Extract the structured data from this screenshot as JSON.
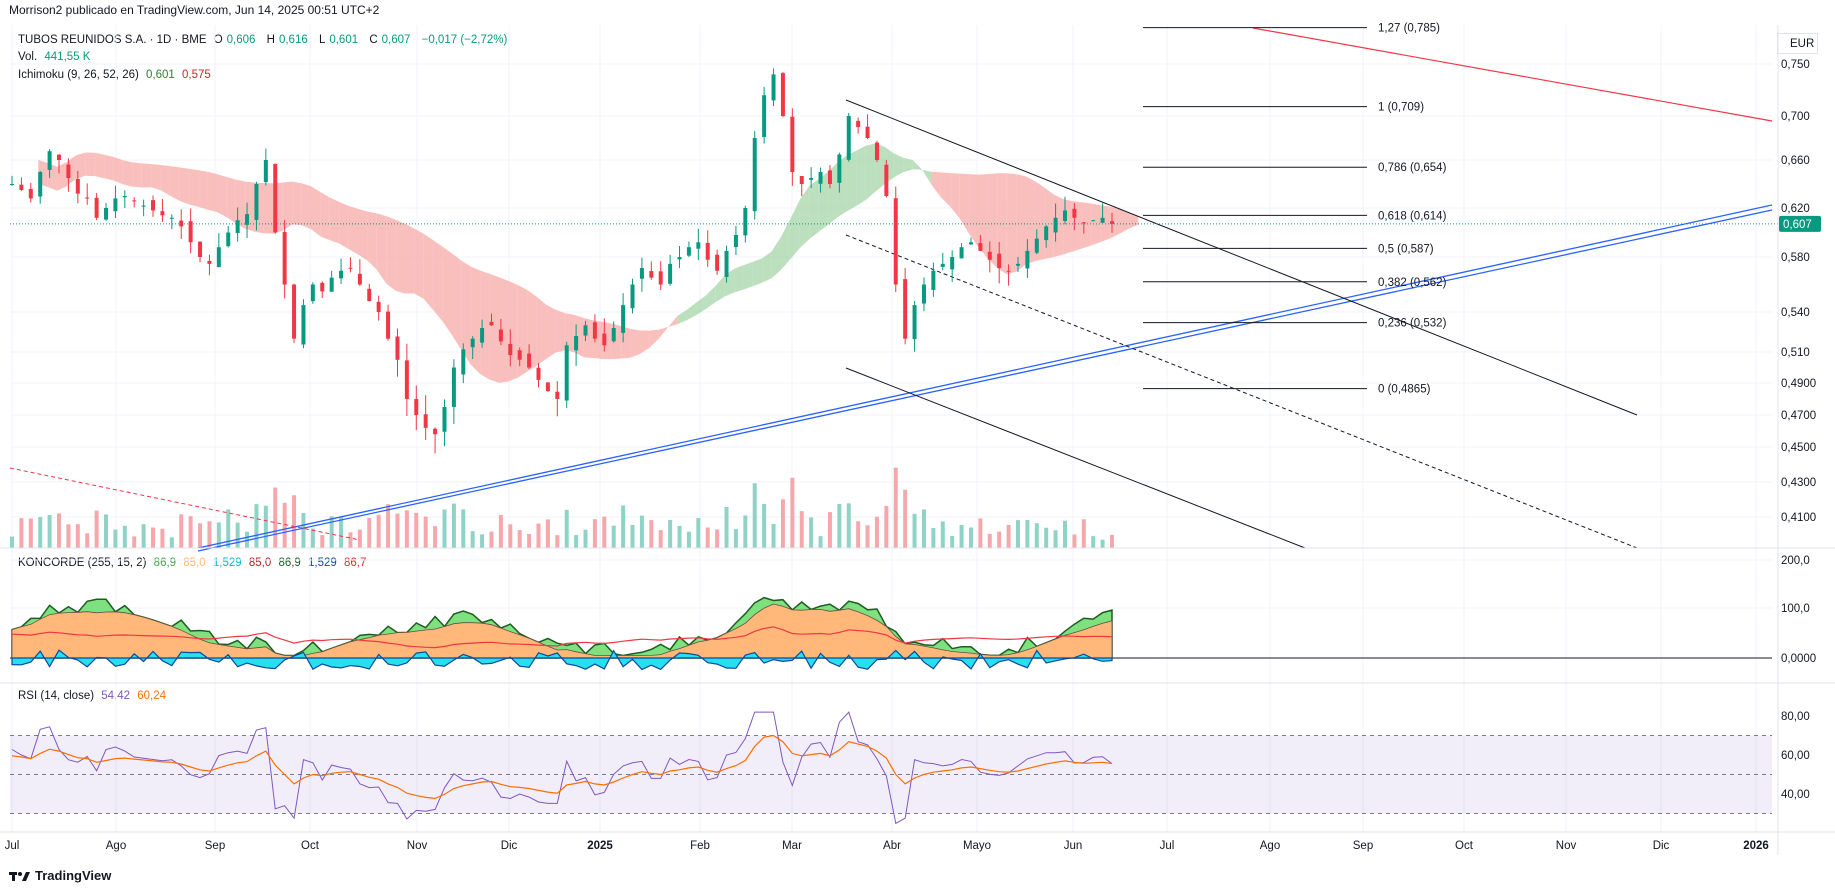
{
  "header": {
    "publisher": "Morrison2 publicado en TradingView.com, Jun 14, 2025 00:51 UTC+2"
  },
  "legend": {
    "symbol": "TUBOS REUNIDOS S.A. · 1D · BME",
    "o_label": "O",
    "o": "0,606",
    "h_label": "H",
    "h": "0,616",
    "l_label": "L",
    "l": "0,601",
    "c_label": "C",
    "c": "0,607",
    "change": "−0,017 (−2,72%)",
    "vol_label": "Vol.",
    "vol": "441,55 K",
    "ichimoku_label": "Ichimoku (9, 26, 52, 26)",
    "ichimoku_v1": "0,601",
    "ichimoku_v2": "0,575",
    "koncorde_label": "KONCORDE (255, 15, 2)",
    "koncorde_values": [
      "86,9",
      "85,0",
      "1,529",
      "85,0",
      "86,9",
      "1,529",
      "86,7"
    ],
    "rsi_label": "RSI (14, close)",
    "rsi_v1": "54,42",
    "rsi_v2": "60,24"
  },
  "colors": {
    "up": "#089981",
    "down": "#f23645",
    "cloud_bull": "#a5d6a7",
    "cloud_bear": "#f7a9a7",
    "koncorde_green": "#7fe07f",
    "koncorde_orange": "#ffb77a",
    "koncorde_cyan": "#26e0f0",
    "koncorde_ma": "#f23645",
    "rsi_line": "#7e57c2",
    "rsi_ma": "#ff6d00",
    "trend_blue": "#2962ff"
  },
  "chart_data": [
    {
      "type": "candlestick",
      "currency": "EUR",
      "x_ticks": [
        "Jul",
        "Ago",
        "Sep",
        "Oct",
        "Nov",
        "Dic",
        "2025",
        "Feb",
        "Mar",
        "Abr",
        "Mayo",
        "Jun",
        "Jul",
        "Ago",
        "Sep",
        "Oct",
        "Nov",
        "Dic",
        "2026"
      ],
      "y_ticks": [
        "0,750",
        "0,700",
        "0,660",
        "0,620",
        "0,580",
        "0,540",
        "0,510",
        "0,4900",
        "0,4700",
        "0,4500",
        "0,4300",
        "0,4100"
      ],
      "last_price": "0,607",
      "fibonacci": [
        {
          "level": "1,27",
          "price": "0,785"
        },
        {
          "level": "1",
          "price": "0,709"
        },
        {
          "level": "0,786",
          "price": "0,654"
        },
        {
          "level": "0,618",
          "price": "0,614"
        },
        {
          "level": "0,5",
          "price": "0,587"
        },
        {
          "level": "0,382",
          "price": "0,562"
        },
        {
          "level": "0,236",
          "price": "0,532"
        },
        {
          "level": "0",
          "price": "0,4865"
        }
      ],
      "close_series_approx": [
        0.64,
        0.635,
        0.628,
        0.65,
        0.668,
        0.66,
        0.645,
        0.632,
        0.628,
        0.612,
        0.62,
        0.628,
        0.63,
        0.626,
        0.622,
        0.618,
        0.614,
        0.612,
        0.605,
        0.592,
        0.58,
        0.575,
        0.588,
        0.6,
        0.61,
        0.615,
        0.64,
        0.66,
        0.6,
        0.56,
        0.52,
        0.545,
        0.56,
        0.555,
        0.565,
        0.57,
        0.572,
        0.56,
        0.548,
        0.54,
        0.52,
        0.505,
        0.48,
        0.47,
        0.462,
        0.458,
        0.475,
        0.5,
        0.512,
        0.52,
        0.528,
        0.53,
        0.518,
        0.508,
        0.505,
        0.5,
        0.492,
        0.485,
        0.48,
        0.515,
        0.522,
        0.53,
        0.52,
        0.515,
        0.528,
        0.545,
        0.56,
        0.572,
        0.565,
        0.56,
        0.575,
        0.58,
        0.588,
        0.592,
        0.578,
        0.57,
        0.585,
        0.598,
        0.62,
        0.68,
        0.72,
        0.74,
        0.7,
        0.65,
        0.64,
        0.645,
        0.65,
        0.64,
        0.665,
        0.7,
        0.69,
        0.68,
        0.66,
        0.63,
        0.56,
        0.52,
        0.545,
        0.56,
        0.57,
        0.575,
        0.58,
        0.588,
        0.592,
        0.585,
        0.578,
        0.572,
        0.57,
        0.575,
        0.585,
        0.595,
        0.605,
        0.612,
        0.618,
        0.612,
        0.608,
        0.61,
        0.612,
        0.607
      ]
    },
    {
      "type": "volume",
      "label": "Vol.",
      "last": "441,55 K"
    },
    {
      "type": "area",
      "name": "KONCORDE (255, 15, 2)",
      "y_ticks": [
        "200,0",
        "100,0",
        "0,0000"
      ],
      "ylim": [
        -25,
        200
      ]
    },
    {
      "type": "line",
      "name": "RSI (14, close)",
      "y_ticks": [
        "80,00",
        "60,00",
        "40,00"
      ],
      "bands": [
        70,
        50,
        30
      ],
      "last": [
        "54,42",
        "60,24"
      ]
    }
  ],
  "footer": {
    "brand": "TradingView"
  }
}
